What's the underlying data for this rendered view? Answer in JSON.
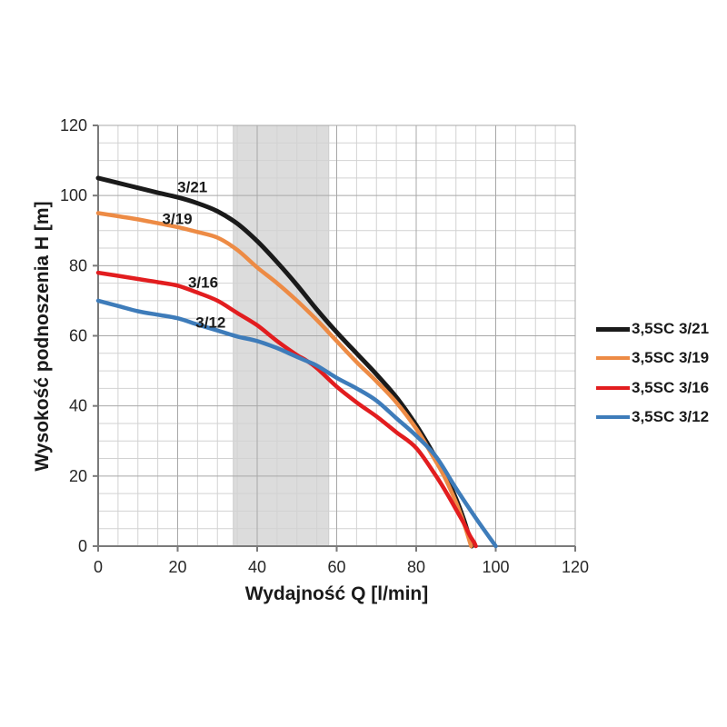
{
  "chart_data": {
    "type": "line",
    "title": "",
    "xlabel": "Wydajność Q [l/min]",
    "ylabel": "Wysokość podnoszenia H [m]",
    "xlim": [
      0,
      120
    ],
    "ylim": [
      0,
      120
    ],
    "xticks": [
      0,
      20,
      40,
      60,
      80,
      100,
      120
    ],
    "yticks": [
      0,
      20,
      40,
      60,
      80,
      100,
      120
    ],
    "minor_grid_step": 5,
    "grid": "major+minor",
    "legend_position": "right",
    "band": {
      "x0": 34,
      "x1": 58,
      "color": "#dcdcdc",
      "edge_color": "#cccccc"
    },
    "series": [
      {
        "name": "3,5SC 3/21",
        "color": "#1a1a1a",
        "width": 5,
        "points": [
          [
            0,
            105
          ],
          [
            5,
            103.6
          ],
          [
            10,
            102.2
          ],
          [
            15,
            100.8
          ],
          [
            20,
            99.5
          ],
          [
            25,
            97.8
          ],
          [
            30,
            95.5
          ],
          [
            35,
            92
          ],
          [
            40,
            87
          ],
          [
            45,
            81
          ],
          [
            50,
            74.5
          ],
          [
            55,
            67.5
          ],
          [
            60,
            61
          ],
          [
            65,
            55
          ],
          [
            70,
            49
          ],
          [
            75,
            42.5
          ],
          [
            80,
            34.5
          ],
          [
            84,
            27
          ],
          [
            87,
            21
          ],
          [
            90,
            13.5
          ],
          [
            92,
            7.5
          ],
          [
            94,
            0
          ]
        ]
      },
      {
        "name": "3,5SC 3/19",
        "color": "#ed8b45",
        "width": 4.5,
        "points": [
          [
            0,
            95
          ],
          [
            5,
            94.1
          ],
          [
            10,
            93.2
          ],
          [
            15,
            92.1
          ],
          [
            20,
            91
          ],
          [
            25,
            89.6
          ],
          [
            30,
            88
          ],
          [
            35,
            84.5
          ],
          [
            40,
            79.5
          ],
          [
            45,
            75
          ],
          [
            50,
            70
          ],
          [
            55,
            64.5
          ],
          [
            60,
            58.5
          ],
          [
            65,
            52.5
          ],
          [
            70,
            47
          ],
          [
            75,
            41
          ],
          [
            80,
            33.5
          ],
          [
            84,
            26
          ],
          [
            87,
            20
          ],
          [
            90,
            12.5
          ],
          [
            92,
            6.5
          ],
          [
            93.8,
            0
          ]
        ]
      },
      {
        "name": "3,5SC 3/16",
        "color": "#e21d1f",
        "width": 4.5,
        "points": [
          [
            0,
            78
          ],
          [
            5,
            77.1
          ],
          [
            10,
            76.2
          ],
          [
            15,
            75.3
          ],
          [
            20,
            74.3
          ],
          [
            25,
            72.3
          ],
          [
            30,
            70
          ],
          [
            35,
            66.5
          ],
          [
            40,
            63
          ],
          [
            45,
            58.5
          ],
          [
            50,
            54.5
          ],
          [
            52,
            53.2
          ],
          [
            55,
            50.8
          ],
          [
            60,
            45.5
          ],
          [
            65,
            41
          ],
          [
            70,
            37
          ],
          [
            75,
            32.5
          ],
          [
            80,
            28
          ],
          [
            85,
            20
          ],
          [
            88,
            14.5
          ],
          [
            90,
            10.5
          ],
          [
            92,
            6.5
          ],
          [
            93.5,
            3
          ],
          [
            94.6,
            1
          ],
          [
            95,
            0
          ]
        ]
      },
      {
        "name": "3,5SC 3/12",
        "color": "#3e7cba",
        "width": 4.5,
        "points": [
          [
            0,
            70
          ],
          [
            5,
            68.5
          ],
          [
            10,
            67
          ],
          [
            15,
            66
          ],
          [
            20,
            65
          ],
          [
            25,
            63.2
          ],
          [
            30,
            61.5
          ],
          [
            35,
            59.8
          ],
          [
            40,
            58.5
          ],
          [
            45,
            56.5
          ],
          [
            48,
            55
          ],
          [
            52,
            53
          ],
          [
            55,
            51.5
          ],
          [
            60,
            48
          ],
          [
            65,
            45
          ],
          [
            70,
            41.5
          ],
          [
            75,
            36.5
          ],
          [
            80,
            31.5
          ],
          [
            85,
            25.5
          ],
          [
            90,
            16.5
          ],
          [
            95,
            8
          ],
          [
            100,
            0
          ]
        ]
      }
    ],
    "annotations": [
      {
        "text": "3/21",
        "x": 23.7,
        "y": 102.5
      },
      {
        "text": "3/19",
        "x": 19.9,
        "y": 93.4
      },
      {
        "text": "3/16",
        "x": 26.4,
        "y": 75.3
      },
      {
        "text": "3/12",
        "x": 28.3,
        "y": 63.9
      }
    ]
  },
  "style_colors": {
    "grid_major": "#a8a8a8",
    "grid_minor": "#d2d2d2",
    "axis_line": "#7a7a7a",
    "tick_text": "#262626",
    "title_text": "#1a1a1a"
  }
}
